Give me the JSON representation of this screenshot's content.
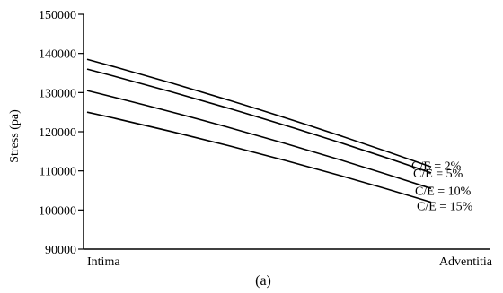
{
  "chart_data": {
    "type": "line",
    "ylabel": "Stress (pa)",
    "x_categories": [
      "Intima",
      "Adventitia"
    ],
    "ylim": [
      90000,
      150000
    ],
    "yticks": [
      90000,
      100000,
      110000,
      120000,
      130000,
      140000,
      150000
    ],
    "caption": "(a)",
    "grid": false,
    "series": [
      {
        "name": "C/E = 2%",
        "points": [
          [
            0,
            138500
          ],
          [
            1,
            111000
          ]
        ]
      },
      {
        "name": "C/E = 5%",
        "points": [
          [
            0,
            136000
          ],
          [
            1,
            109500
          ]
        ]
      },
      {
        "name": "C/E = 10%",
        "points": [
          [
            0,
            130500
          ],
          [
            1,
            105500
          ]
        ]
      },
      {
        "name": "C/E = 15%",
        "points": [
          [
            0,
            125000
          ],
          [
            1,
            102000
          ]
        ]
      }
    ]
  }
}
